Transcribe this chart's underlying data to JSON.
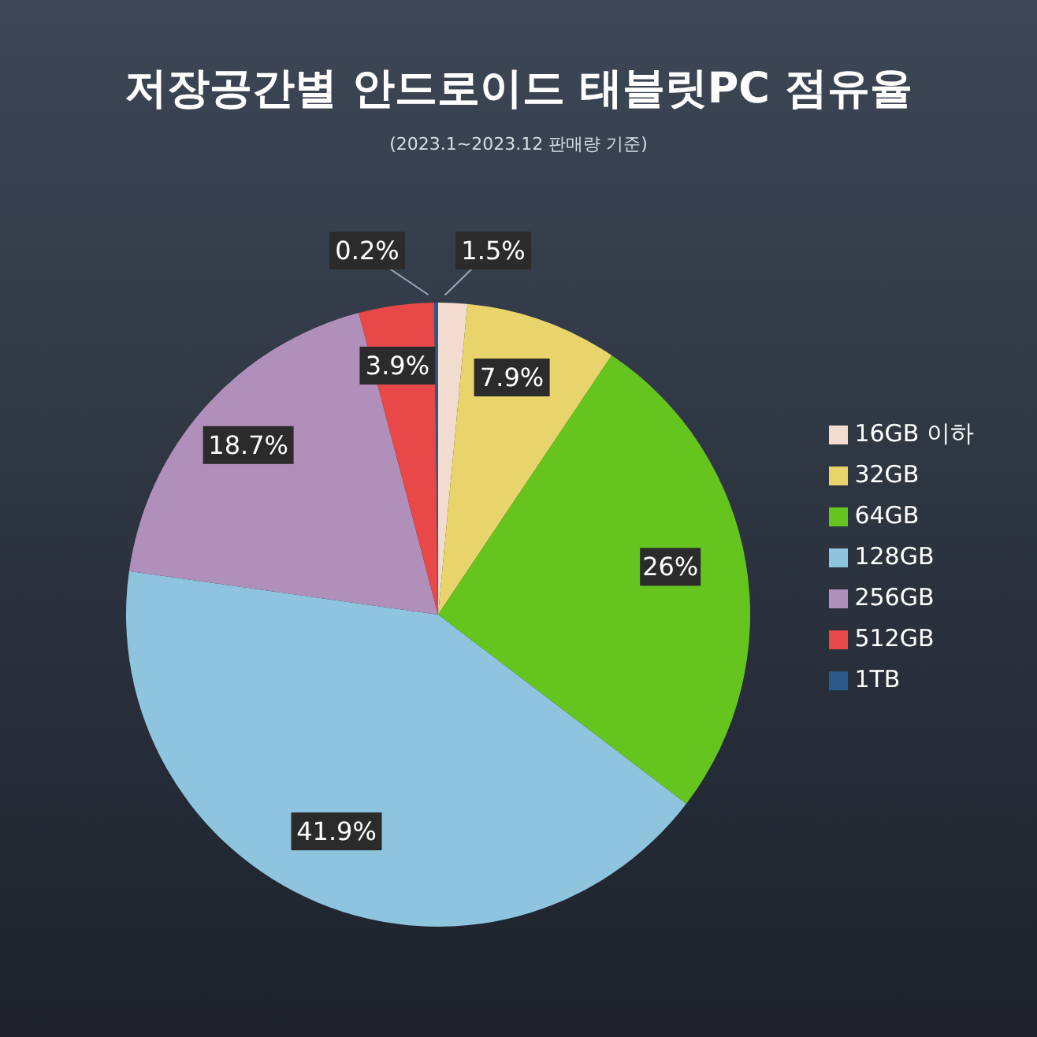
{
  "chart_data": {
    "type": "pie",
    "title": "저장공간별 안드로이드 태블릿PC 점유율",
    "subtitle": "(2023.1~2023.12 판매량 기준)",
    "categories": [
      "16GB 이하",
      "32GB",
      "64GB",
      "128GB",
      "256GB",
      "512GB",
      "1TB"
    ],
    "values": [
      1.5,
      7.9,
      26,
      41.9,
      18.7,
      3.9,
      0.2
    ],
    "colors": [
      "#f2dcd0",
      "#e8d46a",
      "#66c41e",
      "#8ec4de",
      "#b08fbb",
      "#e84848",
      "#2a5a8a"
    ],
    "value_labels": [
      "1.5%",
      "7.9%",
      "26%",
      "41.9%",
      "18.7%",
      "3.9%",
      "0.2%"
    ],
    "legend": "right"
  }
}
